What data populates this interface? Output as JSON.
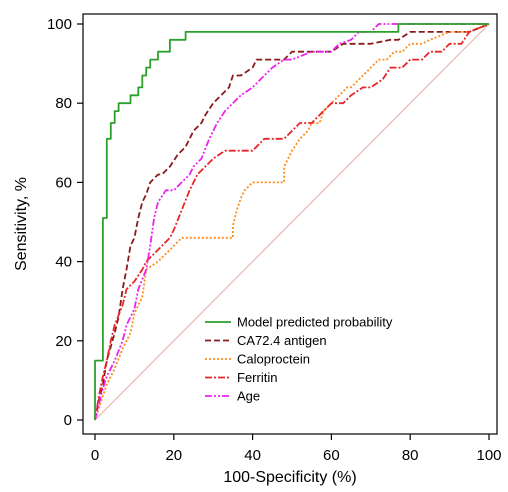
{
  "chart_data": {
    "type": "line",
    "title": "",
    "xlabel": "100-Specificity (%)",
    "ylabel": "Sensitivity, %",
    "xlim": [
      0,
      100
    ],
    "ylim": [
      0,
      100
    ],
    "x_ticks": [
      "0",
      "20",
      "40",
      "60",
      "80",
      "100"
    ],
    "y_ticks": [
      "0",
      "20",
      "40",
      "60",
      "80",
      "100"
    ],
    "grid": false,
    "legend_position": "bottom-right",
    "reference_line": {
      "x": [
        0,
        100
      ],
      "y": [
        0,
        100
      ],
      "color": "#e8b4b4"
    },
    "series": [
      {
        "name": "Model predicted probability",
        "color": "#2ca02c",
        "dash": "",
        "x": [
          0,
          0,
          2,
          2,
          3,
          3,
          4,
          4,
          5,
          5,
          6,
          6,
          9,
          9,
          11,
          11,
          12,
          12,
          13,
          13,
          14,
          14,
          16,
          16,
          19,
          19,
          23,
          23,
          77,
          77,
          100
        ],
        "y": [
          0,
          15,
          15,
          51,
          51,
          71,
          71,
          75,
          75,
          78,
          78,
          80,
          80,
          82,
          82,
          84,
          84,
          87,
          87,
          89,
          89,
          91,
          91,
          93,
          93,
          96,
          96,
          98,
          98,
          100,
          100
        ]
      },
      {
        "name": "CA72.4 antigen",
        "color": "#8b1a1a",
        "dash": "6,3",
        "x": [
          0,
          1,
          2,
          3,
          5,
          6,
          7,
          8,
          9,
          10,
          11,
          12,
          13,
          14,
          16,
          17,
          19,
          21,
          23,
          25,
          27,
          28,
          30,
          32,
          34,
          35,
          37,
          40,
          41,
          44,
          46,
          48,
          50,
          55,
          58,
          60,
          63,
          67,
          70,
          75,
          77,
          80,
          85,
          90,
          95,
          100
        ],
        "y": [
          0,
          5,
          9,
          15,
          22,
          26,
          33,
          38,
          44,
          46,
          51,
          55,
          57,
          60,
          62,
          62,
          64,
          67,
          69,
          73,
          75,
          77,
          80,
          82,
          84,
          87,
          87,
          89,
          91,
          91,
          91,
          91,
          93,
          93,
          93,
          93,
          95,
          95,
          95,
          96,
          96,
          98,
          98,
          98,
          98,
          100
        ]
      },
      {
        "name": "Caloproctein",
        "color": "#ff8c1a",
        "dash": "2,2",
        "x": [
          0,
          1,
          2,
          3,
          5,
          7,
          9,
          10,
          12,
          13,
          16,
          18,
          20,
          22,
          24,
          26,
          28,
          30,
          33,
          35,
          35,
          36,
          37,
          38,
          40,
          42,
          45,
          47,
          48,
          48,
          50,
          52,
          54,
          55,
          57,
          58,
          60,
          62,
          64,
          65,
          67,
          70,
          72,
          74,
          76,
          78,
          80,
          83,
          85,
          90,
          95,
          100
        ],
        "y": [
          0,
          3,
          6,
          9,
          13,
          18,
          22,
          27,
          31,
          38,
          40,
          42,
          44,
          46,
          46,
          46,
          46,
          46,
          46,
          46,
          49,
          53,
          56,
          58,
          60,
          60,
          60,
          60,
          60,
          64,
          68,
          71,
          73,
          75,
          75,
          78,
          80,
          82,
          84,
          84,
          86,
          89,
          91,
          91,
          93,
          93,
          95,
          95,
          96,
          98,
          98,
          100
        ]
      },
      {
        "name": "Ferritin",
        "color": "#e8262a",
        "dash": "7,2,2,2",
        "x": [
          0,
          1,
          2,
          3,
          4,
          5,
          7,
          8,
          10,
          12,
          13,
          15,
          17,
          19,
          20,
          22,
          24,
          26,
          28,
          30,
          33,
          36,
          40,
          43,
          45,
          48,
          50,
          52,
          55,
          58,
          60,
          63,
          65,
          68,
          70,
          73,
          75,
          78,
          80,
          83,
          85,
          88,
          90,
          93,
          95,
          100
        ],
        "y": [
          0,
          6,
          11,
          15,
          20,
          24,
          29,
          33,
          35,
          38,
          40,
          42,
          44,
          46,
          48,
          53,
          58,
          62,
          64,
          66,
          68,
          68,
          68,
          71,
          71,
          71,
          73,
          75,
          75,
          78,
          80,
          80,
          82,
          84,
          84,
          86,
          89,
          89,
          91,
          91,
          93,
          93,
          95,
          95,
          98,
          100
        ]
      },
      {
        "name": "Age",
        "color": "#ee22ee",
        "dash": "7,2,2,2,2,2",
        "x": [
          0,
          1,
          2,
          3,
          5,
          7,
          8,
          10,
          11,
          13,
          14,
          15,
          16,
          18,
          20,
          22,
          24,
          25,
          27,
          29,
          31,
          33,
          35,
          37,
          40,
          42,
          45,
          48,
          50,
          55,
          60,
          62,
          65,
          67,
          70,
          72,
          75,
          80,
          85,
          90,
          95,
          100
        ],
        "y": [
          0,
          4,
          8,
          11,
          15,
          20,
          24,
          28,
          33,
          38,
          44,
          51,
          55,
          58,
          58,
          60,
          62,
          64,
          66,
          71,
          75,
          78,
          80,
          82,
          84,
          86,
          89,
          91,
          91,
          93,
          93,
          95,
          96,
          98,
          98,
          100,
          100,
          100,
          100,
          100,
          100,
          100
        ]
      }
    ]
  }
}
